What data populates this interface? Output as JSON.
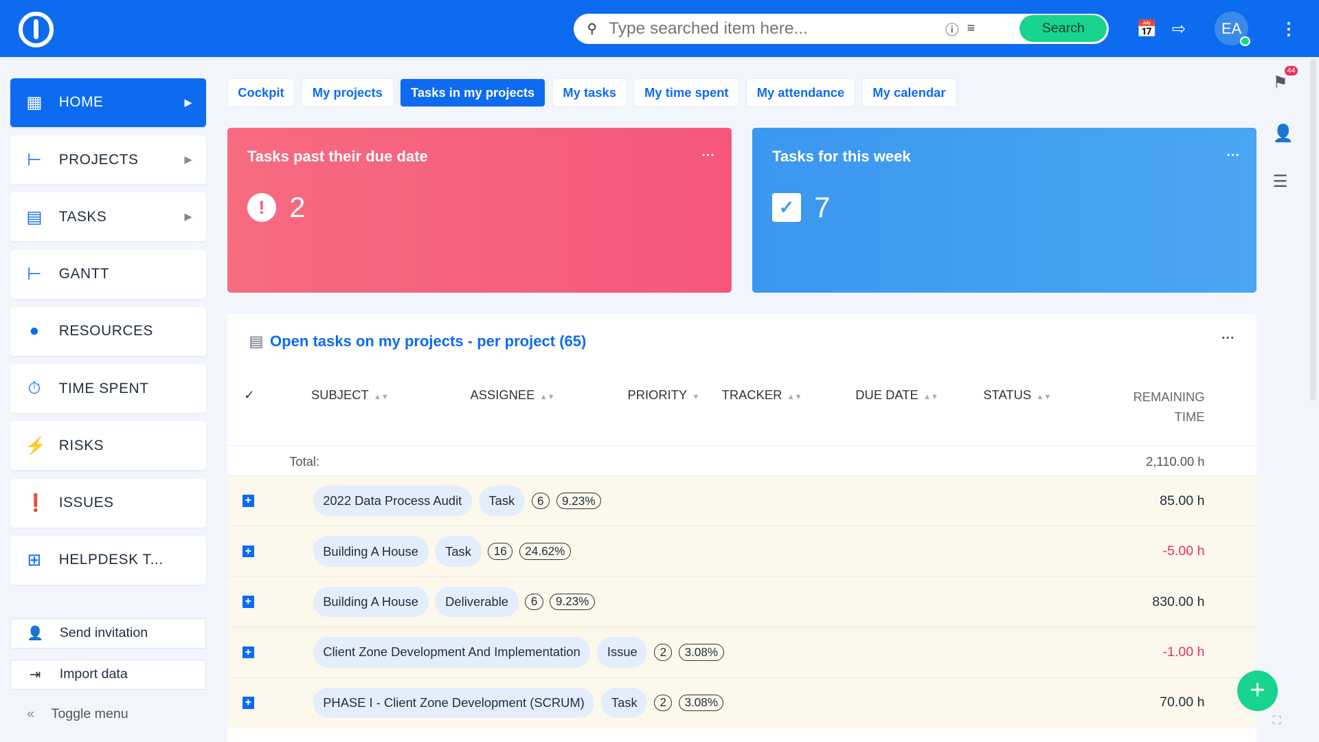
{
  "header": {
    "search_placeholder": "Type searched item here...",
    "search_button": "Search",
    "avatar_initials": "EA",
    "notification_count": "44"
  },
  "sidebar": {
    "items": [
      {
        "label": "HOME",
        "icon": "grid-icon",
        "active": true,
        "arrow": true
      },
      {
        "label": "PROJECTS",
        "icon": "tree-icon",
        "arrow": true
      },
      {
        "label": "TASKS",
        "icon": "clipboard-icon",
        "arrow": true
      },
      {
        "label": "GANTT",
        "icon": "gantt-icon"
      },
      {
        "label": "RESOURCES",
        "icon": "person-icon"
      },
      {
        "label": "TIME SPENT",
        "icon": "stopwatch-icon"
      },
      {
        "label": "RISKS",
        "icon": "bolt-icon"
      },
      {
        "label": "ISSUES",
        "icon": "exclamation-icon"
      },
      {
        "label": "HELPDESK T...",
        "icon": "plus-square-icon"
      }
    ],
    "send_invitation": "Send invitation",
    "import_data": "Import data",
    "toggle_menu": "Toggle menu"
  },
  "tabs": [
    "Cockpit",
    "My projects",
    "Tasks in my projects",
    "My tasks",
    "My time spent",
    "My attendance",
    "My calendar"
  ],
  "active_tab": "Tasks in my projects",
  "cards": {
    "past_due": {
      "title": "Tasks past their due date",
      "value": "2",
      "color": "#f5607a"
    },
    "this_week": {
      "title": "Tasks for this week",
      "value": "7",
      "color": "#3f9cf0"
    }
  },
  "panel": {
    "title": "Open tasks on my projects - per project (65)",
    "columns": {
      "subject": "SUBJECT",
      "assignee": "ASSIGNEE",
      "priority": "PRIORITY",
      "tracker": "TRACKER",
      "due_date": "DUE DATE",
      "status": "STATUS",
      "remaining_1": "REMAINING",
      "remaining_2": "TIME"
    },
    "total_label": "Total:",
    "total_value": "2,110.00 h",
    "rows": [
      {
        "project": "2022 Data Process Audit",
        "tracker": "Task",
        "count": "6",
        "percent": "9.23%",
        "remaining": "85.00 h"
      },
      {
        "project": "Building A House",
        "tracker": "Task",
        "count": "16",
        "percent": "24.62%",
        "remaining": "-5.00 h"
      },
      {
        "project": "Building A House",
        "tracker": "Deliverable",
        "count": "6",
        "percent": "9.23%",
        "remaining": "830.00 h"
      },
      {
        "project": "Client Zone Development And Implementation",
        "tracker": "Issue",
        "count": "2",
        "percent": "3.08%",
        "remaining": "-1.00 h"
      },
      {
        "project": "PHASE I - Client Zone Development (SCRUM)",
        "tracker": "Task",
        "count": "2",
        "percent": "3.08%",
        "remaining": "70.00 h"
      }
    ]
  }
}
